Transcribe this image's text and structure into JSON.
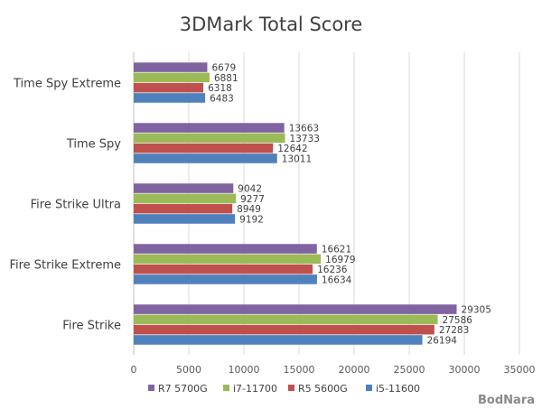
{
  "chart_data": {
    "type": "bar",
    "orientation": "horizontal",
    "title": "3DMark Total Score",
    "xlabel": "",
    "ylabel": "",
    "xlim": [
      0,
      35000
    ],
    "ticks": [
      "0",
      "5000",
      "10000",
      "15000",
      "20000",
      "25000",
      "30000",
      "35000"
    ],
    "grid": true,
    "legend_position": "bottom",
    "categories": [
      "Time Spy Extreme",
      "Time Spy",
      "Fire Strike Ultra",
      "Fire Strike Extreme",
      "Fire Strike"
    ],
    "series": [
      {
        "name": "R7 5700G",
        "color": "#8064a2",
        "values": [
          6679,
          13663,
          9042,
          16621,
          29305
        ]
      },
      {
        "name": "i7-11700",
        "color": "#9bbb59",
        "values": [
          6881,
          13733,
          9277,
          16979,
          27586
        ]
      },
      {
        "name": "R5 5600G",
        "color": "#c0504d",
        "values": [
          6318,
          12642,
          8949,
          16236,
          27283
        ]
      },
      {
        "name": "i5-11600",
        "color": "#4f81bd",
        "values": [
          6483,
          13011,
          9192,
          16634,
          26194
        ]
      }
    ]
  },
  "watermark": {
    "text": "BodNara"
  }
}
